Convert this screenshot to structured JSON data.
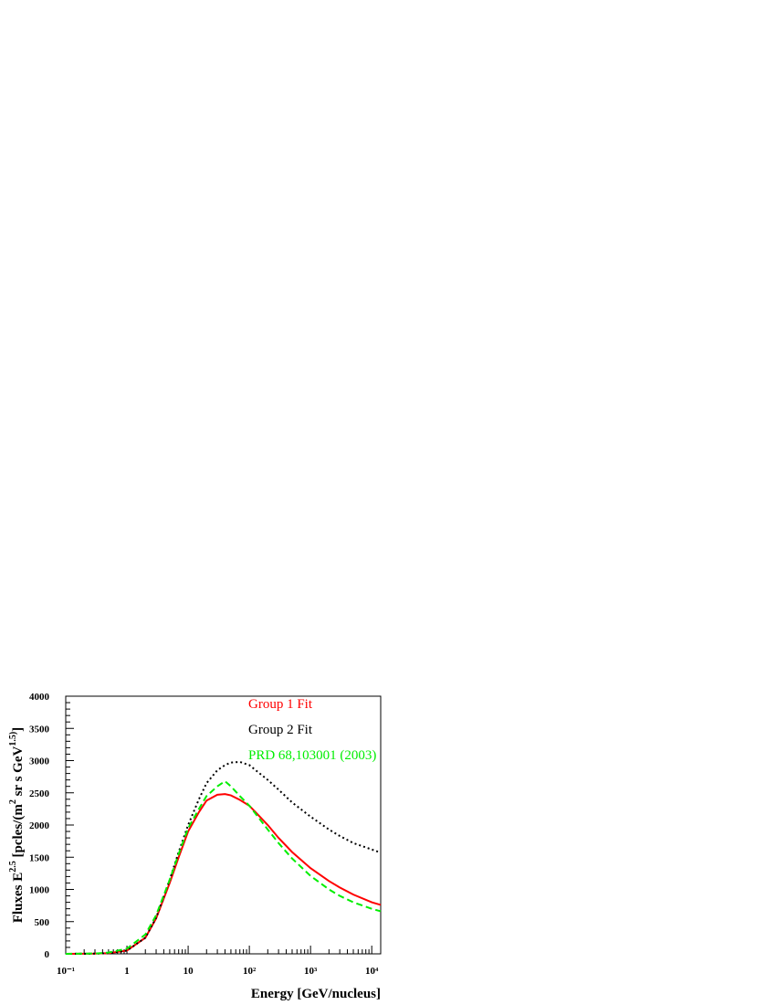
{
  "chart_data": {
    "type": "line",
    "xlabel": "Energy [GeV/nucleus]",
    "ylabel_parts": [
      {
        "text": "Fluxes E"
      },
      {
        "text": "2.5",
        "sup": true
      },
      {
        "text": " [pcles/(m"
      },
      {
        "text": "2",
        "sup": true
      },
      {
        "text": " sr s GeV"
      },
      {
        "text": "1.5)",
        "sup": true
      },
      {
        "text": "]"
      }
    ],
    "log_x": true,
    "xlim": [
      0.1,
      14000
    ],
    "ylim": [
      0,
      4000
    ],
    "xticks": [
      {
        "value": 0.1,
        "label": "10⁻¹"
      },
      1,
      10,
      {
        "value": 100,
        "label": "10²"
      },
      {
        "value": 1000,
        "label": "10³"
      },
      {
        "value": 10000,
        "label": "10⁴"
      }
    ],
    "yticks": [
      0,
      500,
      1000,
      1500,
      2000,
      2500,
      3000,
      3500,
      4000
    ],
    "x": [
      0.1,
      0.3,
      0.5,
      1,
      2,
      3,
      5,
      7,
      10,
      15,
      20,
      30,
      40,
      50,
      70,
      100,
      200,
      300,
      500,
      1000,
      2000,
      3000,
      5000,
      10000,
      14000
    ],
    "series": [
      {
        "name": "Group 1 Fit",
        "color": "#ff0000",
        "dash": "solid",
        "values": [
          0,
          3,
          10,
          50,
          250,
          550,
          1100,
          1500,
          1900,
          2200,
          2380,
          2470,
          2480,
          2460,
          2390,
          2300,
          2000,
          1800,
          1580,
          1330,
          1130,
          1030,
          920,
          800,
          760
        ]
      },
      {
        "name": "Group 2 Fit",
        "color": "#000000",
        "dash": "dotted",
        "values": [
          0,
          3,
          10,
          50,
          250,
          560,
          1150,
          1580,
          2000,
          2400,
          2650,
          2850,
          2930,
          2970,
          2980,
          2930,
          2700,
          2550,
          2350,
          2130,
          1930,
          1830,
          1720,
          1620,
          1570
        ]
      },
      {
        "name": "PRD 68,103001 (2003)",
        "color": "#00ee00",
        "dash": "dashed",
        "values": [
          0,
          5,
          20,
          80,
          300,
          600,
          1150,
          1550,
          1950,
          2250,
          2450,
          2600,
          2680,
          2600,
          2450,
          2300,
          1930,
          1720,
          1480,
          1210,
          1000,
          900,
          800,
          700,
          660
        ]
      }
    ]
  }
}
